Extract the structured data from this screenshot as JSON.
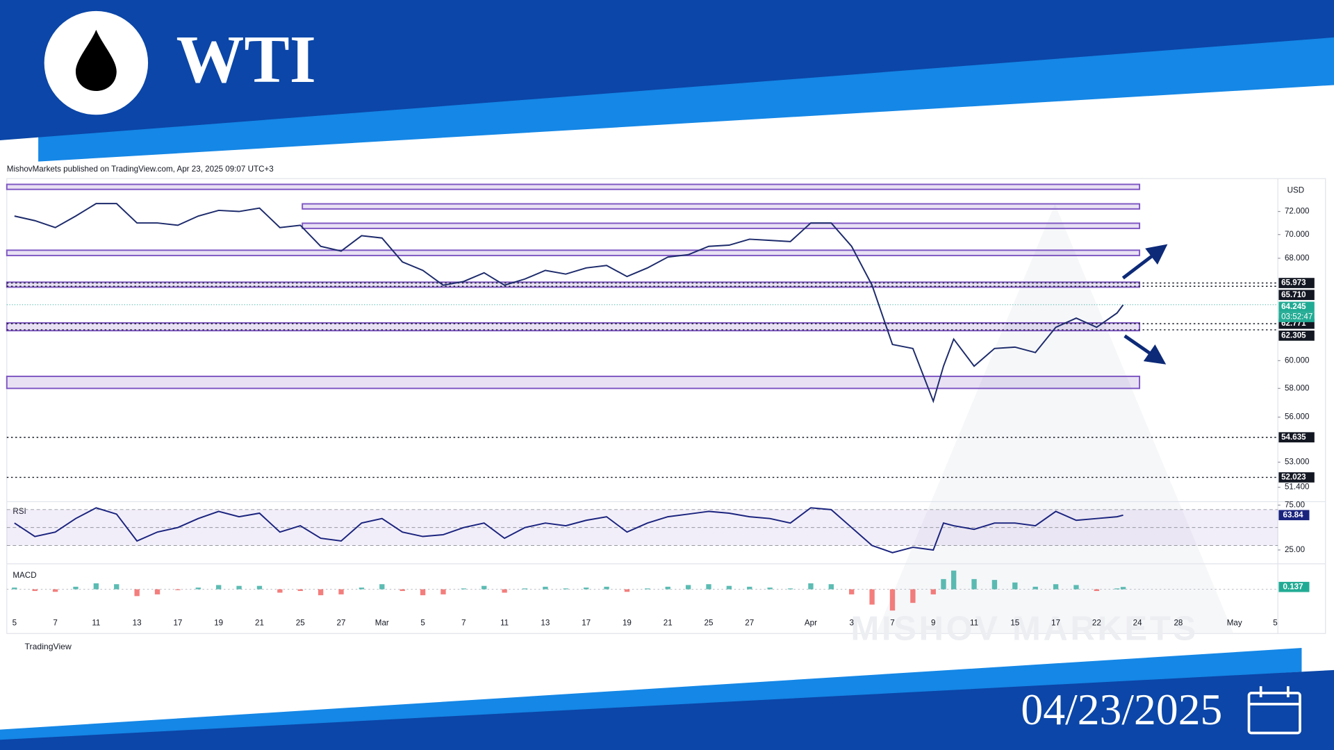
{
  "header": {
    "title": "WTI"
  },
  "footer": {
    "date": "04/23/2025"
  },
  "watermark": "MISHOV   MARKETS",
  "attribution": "MishovMarkets published on TradingView.com, Apr 23, 2025 09:07 UTC+3",
  "brand": "TradingView",
  "chart_data": [
    {
      "type": "line",
      "currency": "USD",
      "color": "#1c2a6b",
      "log": true,
      "x": [
        0,
        1,
        2,
        3,
        4,
        5,
        6,
        7,
        8,
        9,
        10,
        11,
        12,
        13,
        14,
        15,
        16,
        17,
        18,
        19,
        20,
        21,
        22,
        23,
        24,
        25,
        26,
        27,
        28,
        29,
        30,
        31,
        32,
        33,
        34,
        35,
        36,
        37,
        38,
        39,
        40,
        41,
        42,
        43,
        44,
        45,
        45.5,
        46,
        47,
        48,
        49,
        50,
        51,
        52,
        53,
        54,
        54.3
      ],
      "values": [
        71.6,
        71.2,
        70.6,
        71.6,
        72.7,
        72.7,
        71.0,
        71.0,
        70.8,
        71.6,
        72.1,
        72.0,
        72.3,
        70.6,
        70.8,
        69.0,
        68.6,
        69.9,
        69.7,
        67.7,
        67.0,
        65.8,
        66.1,
        66.8,
        65.8,
        66.3,
        67.0,
        66.7,
        67.2,
        67.4,
        66.5,
        67.2,
        68.1,
        68.3,
        69.0,
        69.1,
        69.6,
        69.5,
        69.4,
        71.0,
        71.0,
        69.0,
        65.8,
        61.2,
        60.9,
        57.1,
        59.6,
        61.6,
        59.6,
        60.9,
        61.0,
        60.6,
        62.5,
        63.2,
        62.5,
        63.6,
        64.245
      ],
      "countdown": "03:52:47",
      "xlim": [
        -0.375,
        61.875
      ],
      "ylim": [
        50.5,
        74.8
      ],
      "yticks": [
        {
          "value": 72,
          "label": "72.000"
        },
        {
          "value": 70,
          "label": "70.000"
        },
        {
          "value": 68,
          "label": "68.000"
        },
        {
          "value": 60,
          "label": "60.000"
        },
        {
          "value": 58,
          "label": "58.000"
        },
        {
          "value": 56,
          "label": "56.000"
        },
        {
          "value": 53,
          "label": "53.000"
        },
        {
          "value": 51.4,
          "label": "51.400"
        }
      ],
      "levels": [
        65.973,
        {
          "value": 65.71,
          "label": "65.710"
        },
        62.771,
        62.305,
        54.635,
        52.023
      ],
      "zones": [
        {
          "from": -0.375,
          "to": 55.1,
          "low": 74.05,
          "high": 74.35
        },
        {
          "from": 14.1,
          "to": 55.1,
          "low": 72.3,
          "high": 72.6
        },
        {
          "from": 14.1,
          "to": 55.1,
          "low": 70.6,
          "high": 70.9
        },
        {
          "from": -0.375,
          "to": 55.1,
          "low": 68.3,
          "high": 68.6
        },
        {
          "from": -0.375,
          "to": 55.1,
          "low": 65.71,
          "high": 65.973
        },
        {
          "from": -0.375,
          "to": 55.1,
          "low": 62.305,
          "high": 62.771
        },
        {
          "from": -0.375,
          "to": 55.1,
          "low": 58.06,
          "high": 58.8
        }
      ]
    },
    {
      "type": "line",
      "title": "RSI",
      "color": "#1a237e",
      "x": [
        0,
        1,
        2,
        3,
        4,
        5,
        6,
        7,
        8,
        9,
        10,
        11,
        12,
        13,
        14,
        15,
        16,
        17,
        18,
        19,
        20,
        21,
        22,
        23,
        24,
        25,
        26,
        27,
        28,
        29,
        30,
        31,
        32,
        33,
        34,
        35,
        36,
        37,
        38,
        39,
        40,
        41,
        42,
        43,
        44,
        45,
        45.5,
        46,
        47,
        48,
        49,
        50,
        51,
        52,
        53,
        54,
        54.3
      ],
      "values": [
        55,
        40,
        45,
        60,
        72,
        65,
        35,
        45,
        50,
        60,
        68,
        62,
        66,
        45,
        52,
        38,
        35,
        55,
        60,
        45,
        40,
        42,
        50,
        55,
        38,
        50,
        55,
        52,
        58,
        62,
        45,
        55,
        62,
        65,
        68,
        66,
        62,
        60,
        55,
        72,
        70,
        50,
        30,
        22,
        28,
        25,
        55,
        52,
        48,
        55,
        55,
        52,
        68,
        58,
        60,
        62,
        63.84
      ],
      "xlim": [
        -0.375,
        61.875
      ],
      "ylim": [
        9.6,
        78.8
      ],
      "yticks": [
        {
          "value": 75,
          "label": "75.00"
        },
        {
          "value": 25,
          "label": "25.00"
        }
      ],
      "guides": [
        70,
        50,
        30
      ]
    },
    {
      "type": "bar",
      "title": "MACD",
      "colors": {
        "up": "#26a69a",
        "down": "#ef5350"
      },
      "x": [
        0,
        1,
        2,
        3,
        4,
        5,
        6,
        7,
        8,
        9,
        10,
        11,
        12,
        13,
        14,
        15,
        16,
        17,
        18,
        19,
        20,
        21,
        22,
        23,
        24,
        25,
        26,
        27,
        28,
        29,
        30,
        31,
        32,
        33,
        34,
        35,
        36,
        37,
        38,
        39,
        40,
        41,
        42,
        43,
        44,
        45,
        45.5,
        46,
        47,
        48,
        49,
        50,
        51,
        52,
        53,
        54,
        54.3
      ],
      "values": [
        0.1,
        -0.1,
        -0.15,
        0.15,
        0.35,
        0.3,
        -0.4,
        -0.3,
        -0.05,
        0.1,
        0.25,
        0.2,
        0.2,
        -0.2,
        -0.1,
        -0.35,
        -0.3,
        0.1,
        0.3,
        -0.1,
        -0.35,
        -0.3,
        0.05,
        0.2,
        -0.2,
        0.05,
        0.15,
        0.05,
        0.1,
        0.15,
        -0.15,
        0.05,
        0.15,
        0.25,
        0.3,
        0.2,
        0.15,
        0.1,
        0.05,
        0.35,
        0.3,
        -0.3,
        -0.9,
        -1.25,
        -0.8,
        -0.3,
        0.6,
        1.1,
        0.6,
        0.55,
        0.4,
        0.15,
        0.3,
        0.25,
        -0.1,
        0.05,
        0.137
      ],
      "xlim": [
        -0.375,
        61.875
      ],
      "ylim": [
        -1.35,
        1.4
      ],
      "xticks": [
        {
          "value": 0,
          "label": "5"
        },
        {
          "value": 2,
          "label": "7"
        },
        {
          "value": 4,
          "label": "11"
        },
        {
          "value": 6,
          "label": "13"
        },
        {
          "value": 8,
          "label": "17"
        },
        {
          "value": 10,
          "label": "19"
        },
        {
          "value": 12,
          "label": "21"
        },
        {
          "value": 14,
          "label": "25"
        },
        {
          "value": 16,
          "label": "27"
        },
        {
          "value": 18,
          "label": "Mar"
        },
        {
          "value": 20,
          "label": "5"
        },
        {
          "value": 22,
          "label": "7"
        },
        {
          "value": 24,
          "label": "11"
        },
        {
          "value": 26,
          "label": "13"
        },
        {
          "value": 28,
          "label": "17"
        },
        {
          "value": 30,
          "label": "19"
        },
        {
          "value": 32,
          "label": "21"
        },
        {
          "value": 34,
          "label": "25"
        },
        {
          "value": 36,
          "label": "27"
        },
        {
          "value": 39,
          "label": "Apr"
        },
        {
          "value": 41,
          "label": "3"
        },
        {
          "value": 43,
          "label": "7"
        },
        {
          "value": 45,
          "label": "9"
        },
        {
          "value": 47,
          "label": "11"
        },
        {
          "value": 49,
          "label": "15"
        },
        {
          "value": 51,
          "label": "17"
        },
        {
          "value": 53,
          "label": "22"
        },
        {
          "value": 55,
          "label": "24"
        },
        {
          "value": 57,
          "label": "28"
        },
        {
          "value": 59.75,
          "label": "May"
        },
        {
          "value": 61.75,
          "label": "5"
        }
      ]
    }
  ]
}
